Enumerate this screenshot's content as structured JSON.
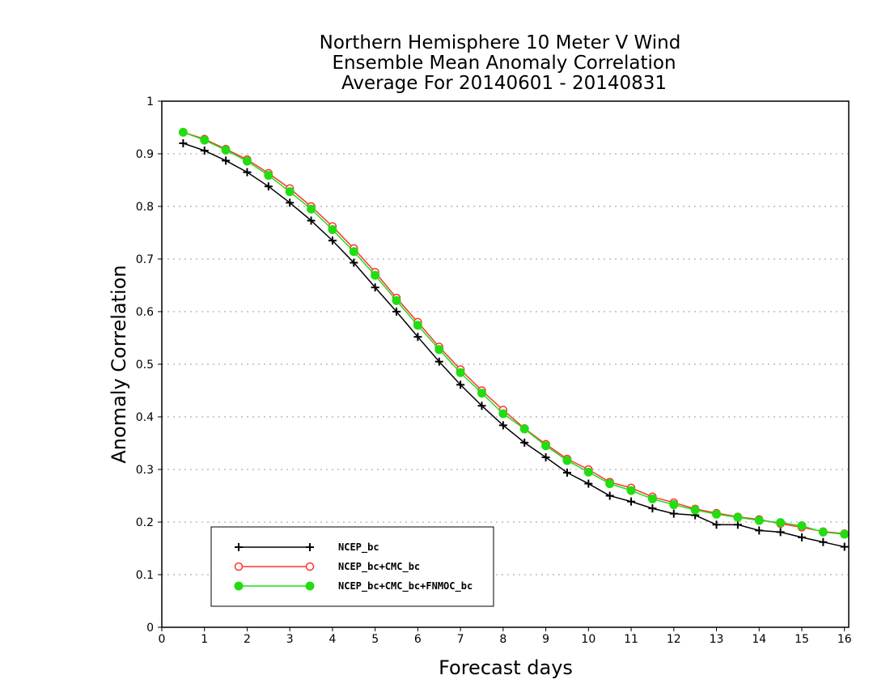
{
  "chart_data": {
    "type": "line",
    "title": [
      "Northern Hemisphere 10 Meter V Wind",
      "Ensemble Mean Anomaly Correlation",
      "Average For 20140601 - 20140831"
    ],
    "xlabel": "Forecast days",
    "ylabel": "Anomaly Correlation",
    "xlim": [
      0,
      16.1
    ],
    "ylim": [
      0,
      1
    ],
    "xticks": [
      "0",
      "1",
      "2",
      "3",
      "4",
      "5",
      "6",
      "7",
      "8",
      "9",
      "10",
      "11",
      "12",
      "13",
      "14",
      "15",
      "16"
    ],
    "yticks": [
      "0",
      "0.1",
      "0.2",
      "0.3",
      "0.4",
      "0.5",
      "0.6",
      "0.7",
      "0.8",
      "0.9",
      "1"
    ],
    "grid": true,
    "legend_position": "bottom-left",
    "x": [
      0.5,
      1,
      1.5,
      2,
      2.5,
      3,
      3.5,
      4,
      4.5,
      5,
      5.5,
      6,
      6.5,
      7,
      7.5,
      8,
      8.5,
      9,
      9.5,
      10,
      10.5,
      11,
      11.5,
      12,
      12.5,
      13,
      13.5,
      14,
      14.5,
      15,
      15.5,
      16
    ],
    "series": [
      {
        "name": "NCEP_bc",
        "color": "#000000",
        "marker": "plus",
        "values": [
          0.92,
          0.906,
          0.887,
          0.865,
          0.838,
          0.807,
          0.773,
          0.735,
          0.693,
          0.646,
          0.6,
          0.552,
          0.505,
          0.461,
          0.421,
          0.384,
          0.351,
          0.323,
          0.294,
          0.273,
          0.25,
          0.239,
          0.226,
          0.216,
          0.213,
          0.195,
          0.195,
          0.184,
          0.181,
          0.171,
          0.162,
          0.153
        ]
      },
      {
        "name": "NCEP_bc+CMC_bc",
        "color": "#ff3333",
        "marker": "open-circle",
        "values": [
          0.941,
          0.928,
          0.909,
          0.889,
          0.863,
          0.834,
          0.8,
          0.762,
          0.72,
          0.675,
          0.626,
          0.58,
          0.533,
          0.49,
          0.45,
          0.413,
          0.378,
          0.348,
          0.32,
          0.3,
          0.276,
          0.265,
          0.248,
          0.237,
          0.225,
          0.217,
          0.21,
          0.205,
          0.197,
          0.19,
          0.182,
          0.178
        ]
      },
      {
        "name": "NCEP_bc+CMC_bc+FNMOC_bc",
        "color": "#22dd11",
        "marker": "filled-circle",
        "values": [
          0.941,
          0.926,
          0.907,
          0.886,
          0.859,
          0.828,
          0.795,
          0.756,
          0.714,
          0.669,
          0.621,
          0.574,
          0.528,
          0.484,
          0.445,
          0.406,
          0.377,
          0.345,
          0.317,
          0.295,
          0.273,
          0.26,
          0.244,
          0.233,
          0.223,
          0.215,
          0.209,
          0.203,
          0.199,
          0.193,
          0.181,
          0.177
        ]
      }
    ]
  }
}
